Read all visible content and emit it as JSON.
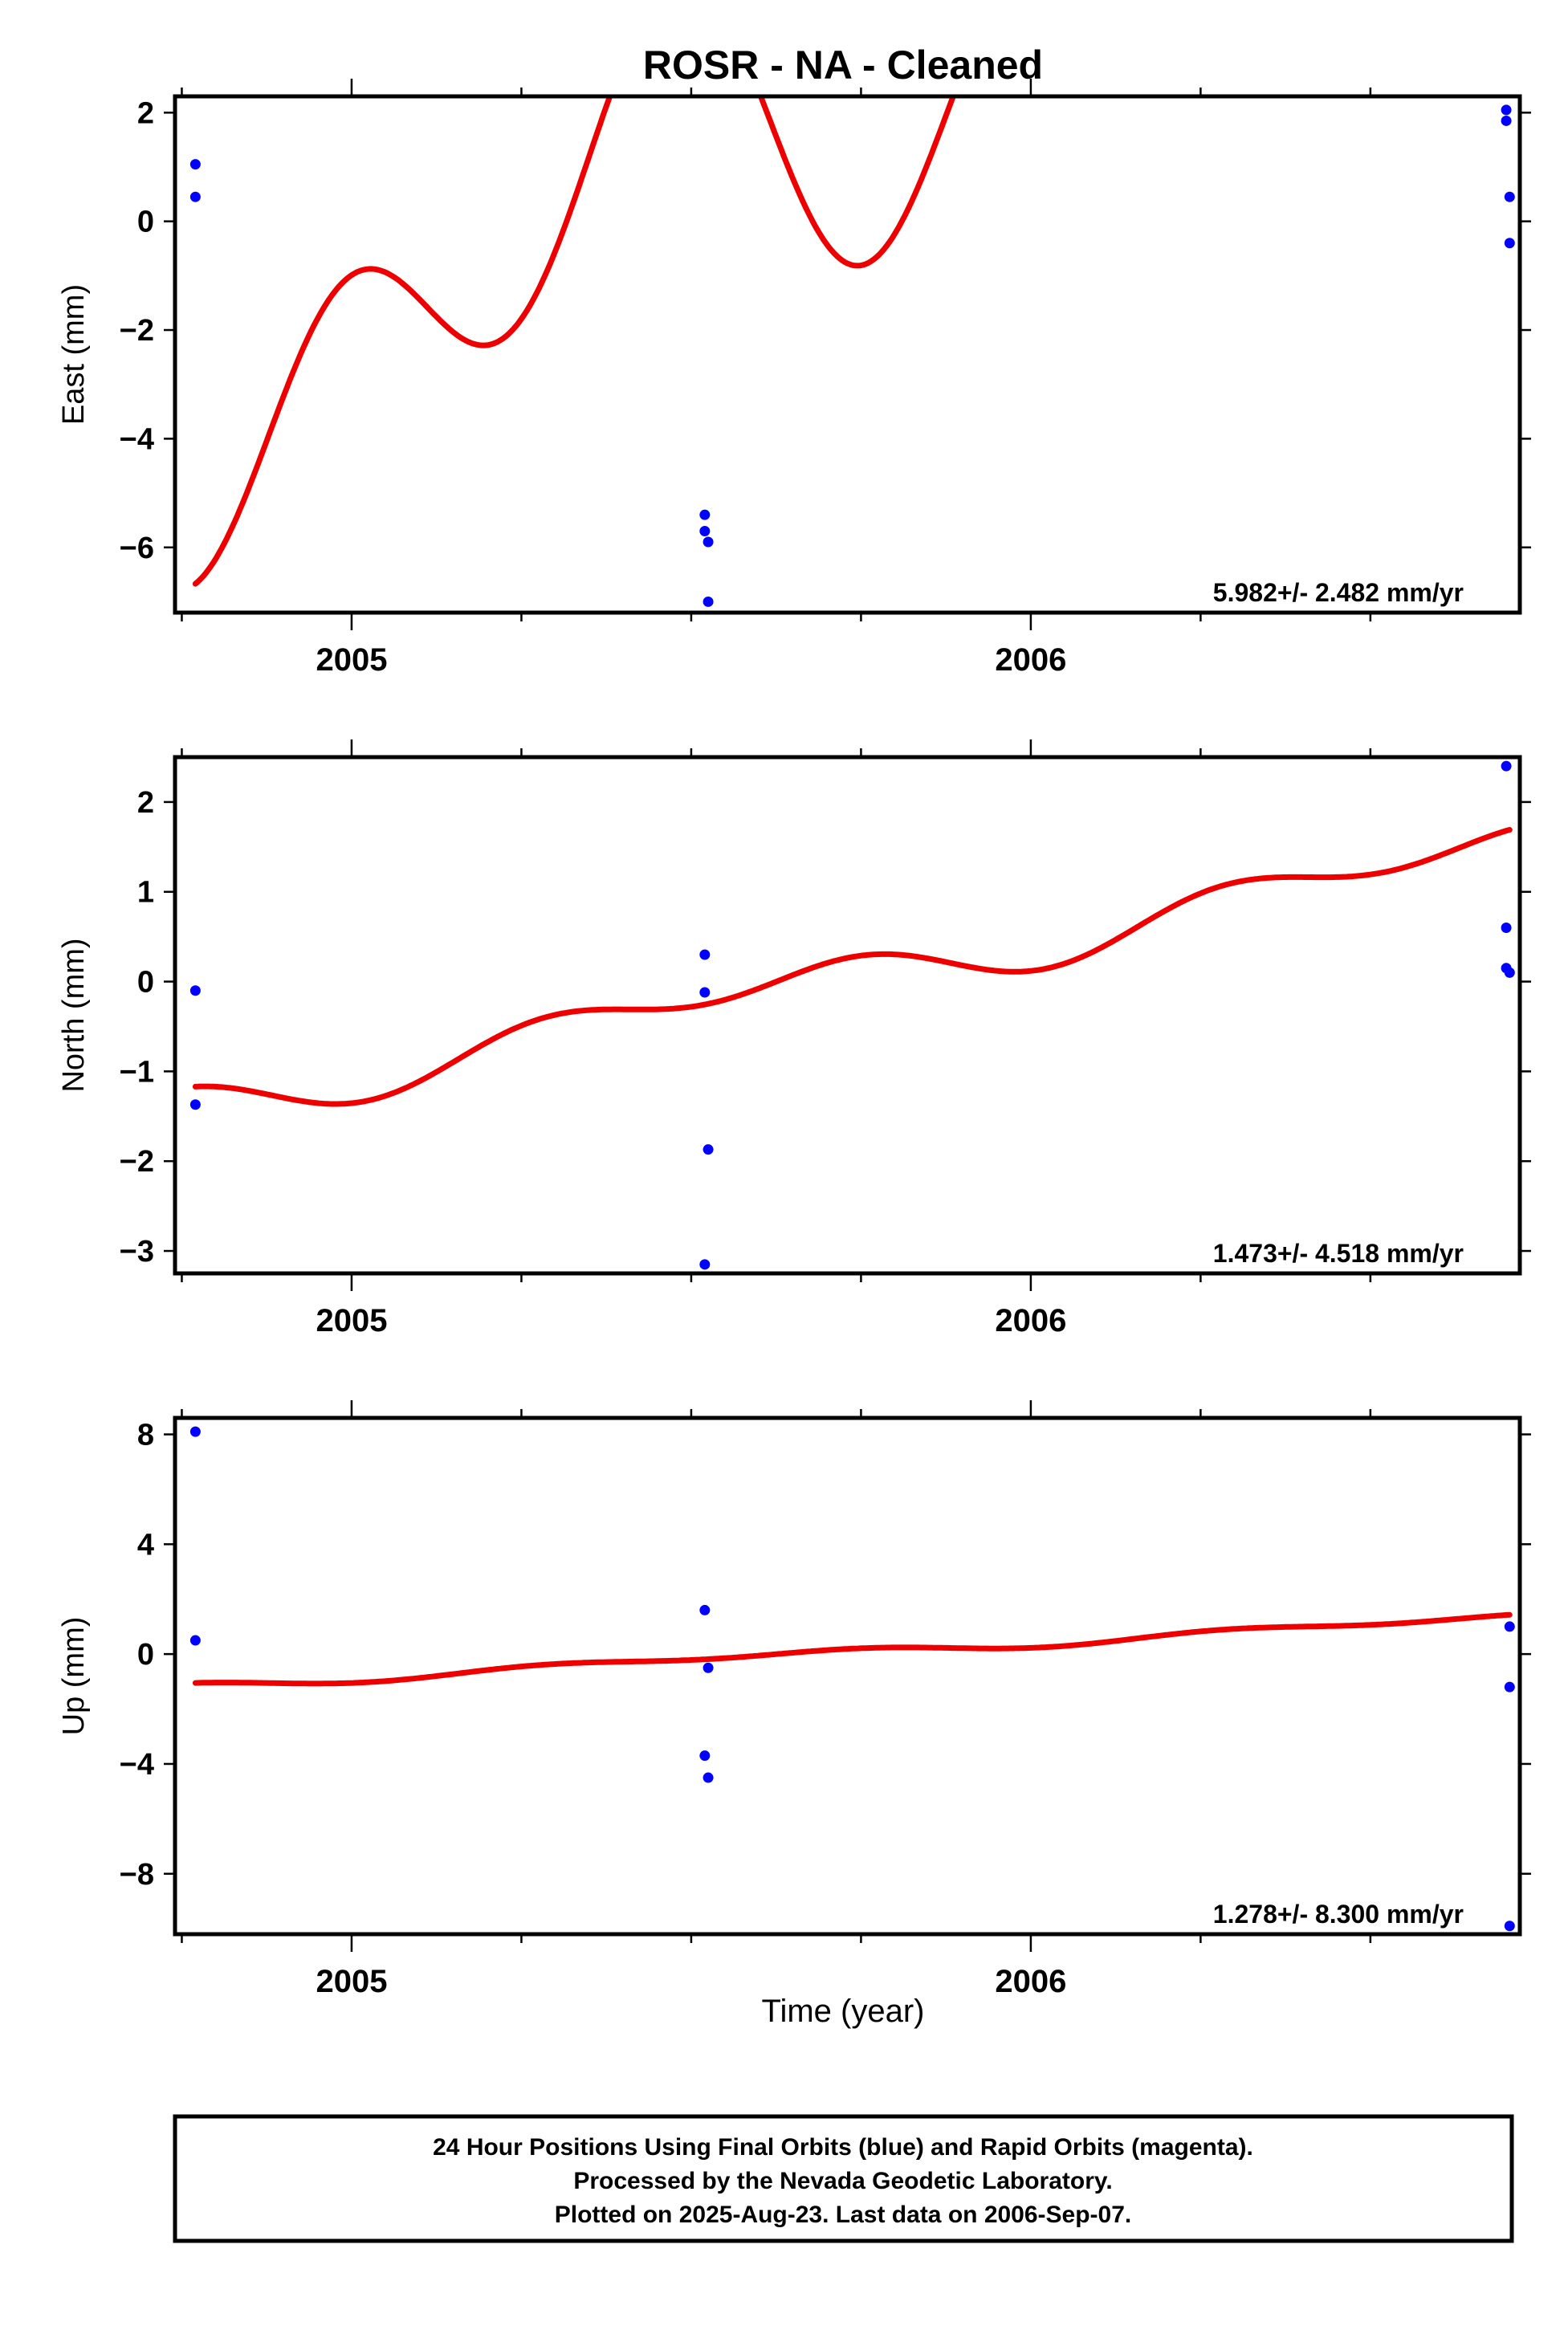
{
  "title": "ROSR  - NA - Cleaned",
  "x_axis_label": "Time (year)",
  "footer": {
    "line1": "24 Hour Positions Using Final Orbits (blue) and Rapid Orbits (magenta).",
    "line2": "Processed by the Nevada Geodetic Laboratory.",
    "line3": "Plotted on 2025-Aug-23. Last data on 2006-Sep-07."
  },
  "colors": {
    "points": "#0000ff",
    "fit": "#ee0000",
    "frame": "#000000"
  },
  "chart_data": [
    {
      "type": "scatter",
      "name": "east",
      "ylabel": "East (mm)",
      "xlim": [
        2004.74,
        2006.72
      ],
      "ylim": [
        -7.2,
        2.3
      ],
      "yticks": [
        -6,
        -4,
        -2,
        0,
        2
      ],
      "ytick_labels": [
        "−6",
        "−4",
        "−2",
        "0",
        "2"
      ],
      "xticks": [
        2005,
        2006
      ],
      "xtick_labels": [
        "2005",
        "2006"
      ],
      "x_minor_ticks": [
        2004.75,
        2005.25,
        2005.5,
        2005.75,
        2006.25,
        2006.5
      ],
      "rate_label": "5.982+/- 2.482 mm/yr",
      "points": [
        [
          2004.77,
          1.05
        ],
        [
          2004.77,
          0.45
        ],
        [
          2005.52,
          -5.4
        ],
        [
          2005.52,
          -5.7
        ],
        [
          2005.525,
          -5.9
        ],
        [
          2005.525,
          -7.0
        ],
        [
          2006.7,
          2.05
        ],
        [
          2006.7,
          1.85
        ],
        [
          2006.705,
          0.45
        ],
        [
          2006.705,
          -0.4
        ]
      ],
      "fit": {
        "t0": 2004.77,
        "t1": 2006.705,
        "rate": 5.982,
        "offset": -3.4,
        "annual_sin": -1.1,
        "annual_cos": -1.15,
        "semiannual_sin": 0.87,
        "semiannual_cos": -2.12
      }
    },
    {
      "type": "scatter",
      "name": "north",
      "ylabel": "North (mm)",
      "xlim": [
        2004.74,
        2006.72
      ],
      "ylim": [
        -3.25,
        2.5
      ],
      "yticks": [
        -3,
        -2,
        -1,
        0,
        1,
        2
      ],
      "ytick_labels": [
        "−3",
        "−2",
        "−1",
        "0",
        "1",
        "2"
      ],
      "xticks": [
        2005,
        2006
      ],
      "xtick_labels": [
        "2005",
        "2006"
      ],
      "x_minor_ticks": [
        2004.75,
        2005.25,
        2005.5,
        2005.75,
        2006.25,
        2006.5
      ],
      "rate_label": "1.473+/- 4.518 mm/yr",
      "points": [
        [
          2004.77,
          -0.1
        ],
        [
          2004.77,
          -1.37
        ],
        [
          2005.52,
          0.3
        ],
        [
          2005.52,
          -0.12
        ],
        [
          2005.525,
          -1.87
        ],
        [
          2005.52,
          -3.15
        ],
        [
          2006.7,
          2.4
        ],
        [
          2006.7,
          0.6
        ],
        [
          2006.7,
          0.15
        ],
        [
          2006.705,
          0.1
        ]
      ],
      "fit": {
        "t0": 2004.77,
        "t1": 2006.705,
        "rate": 1.473,
        "offset": -1.35,
        "annual_sin": -0.17,
        "annual_cos": 0.0,
        "semiannual_sin": 0.0,
        "semiannual_cos": 0.18
      }
    },
    {
      "type": "scatter",
      "name": "up",
      "ylabel": "Up (mm)",
      "xlim": [
        2004.74,
        2006.72
      ],
      "ylim": [
        -10.2,
        8.6
      ],
      "yticks": [
        -8,
        -4,
        0,
        4,
        8
      ],
      "ytick_labels": [
        "−8",
        "−4",
        "0",
        "4",
        "8"
      ],
      "xticks": [
        2005,
        2006
      ],
      "xtick_labels": [
        "2005",
        "2006"
      ],
      "x_minor_ticks": [
        2004.75,
        2005.25,
        2005.5,
        2005.75,
        2006.25,
        2006.5
      ],
      "rate_label": "1.278+/- 8.300 mm/yr",
      "points": [
        [
          2004.77,
          8.1
        ],
        [
          2004.77,
          0.5
        ],
        [
          2005.52,
          1.6
        ],
        [
          2005.525,
          -0.5
        ],
        [
          2005.52,
          -3.7
        ],
        [
          2005.525,
          -4.5
        ],
        [
          2006.705,
          1.0
        ],
        [
          2006.705,
          -1.2
        ],
        [
          2006.705,
          -9.9
        ]
      ],
      "fit": {
        "t0": 2004.77,
        "t1": 2006.705,
        "rate": 1.278,
        "offset": -1.15,
        "annual_sin": -0.1,
        "annual_cos": 0.0,
        "semiannual_sin": 0.0,
        "semiannual_cos": 0.1
      }
    }
  ]
}
